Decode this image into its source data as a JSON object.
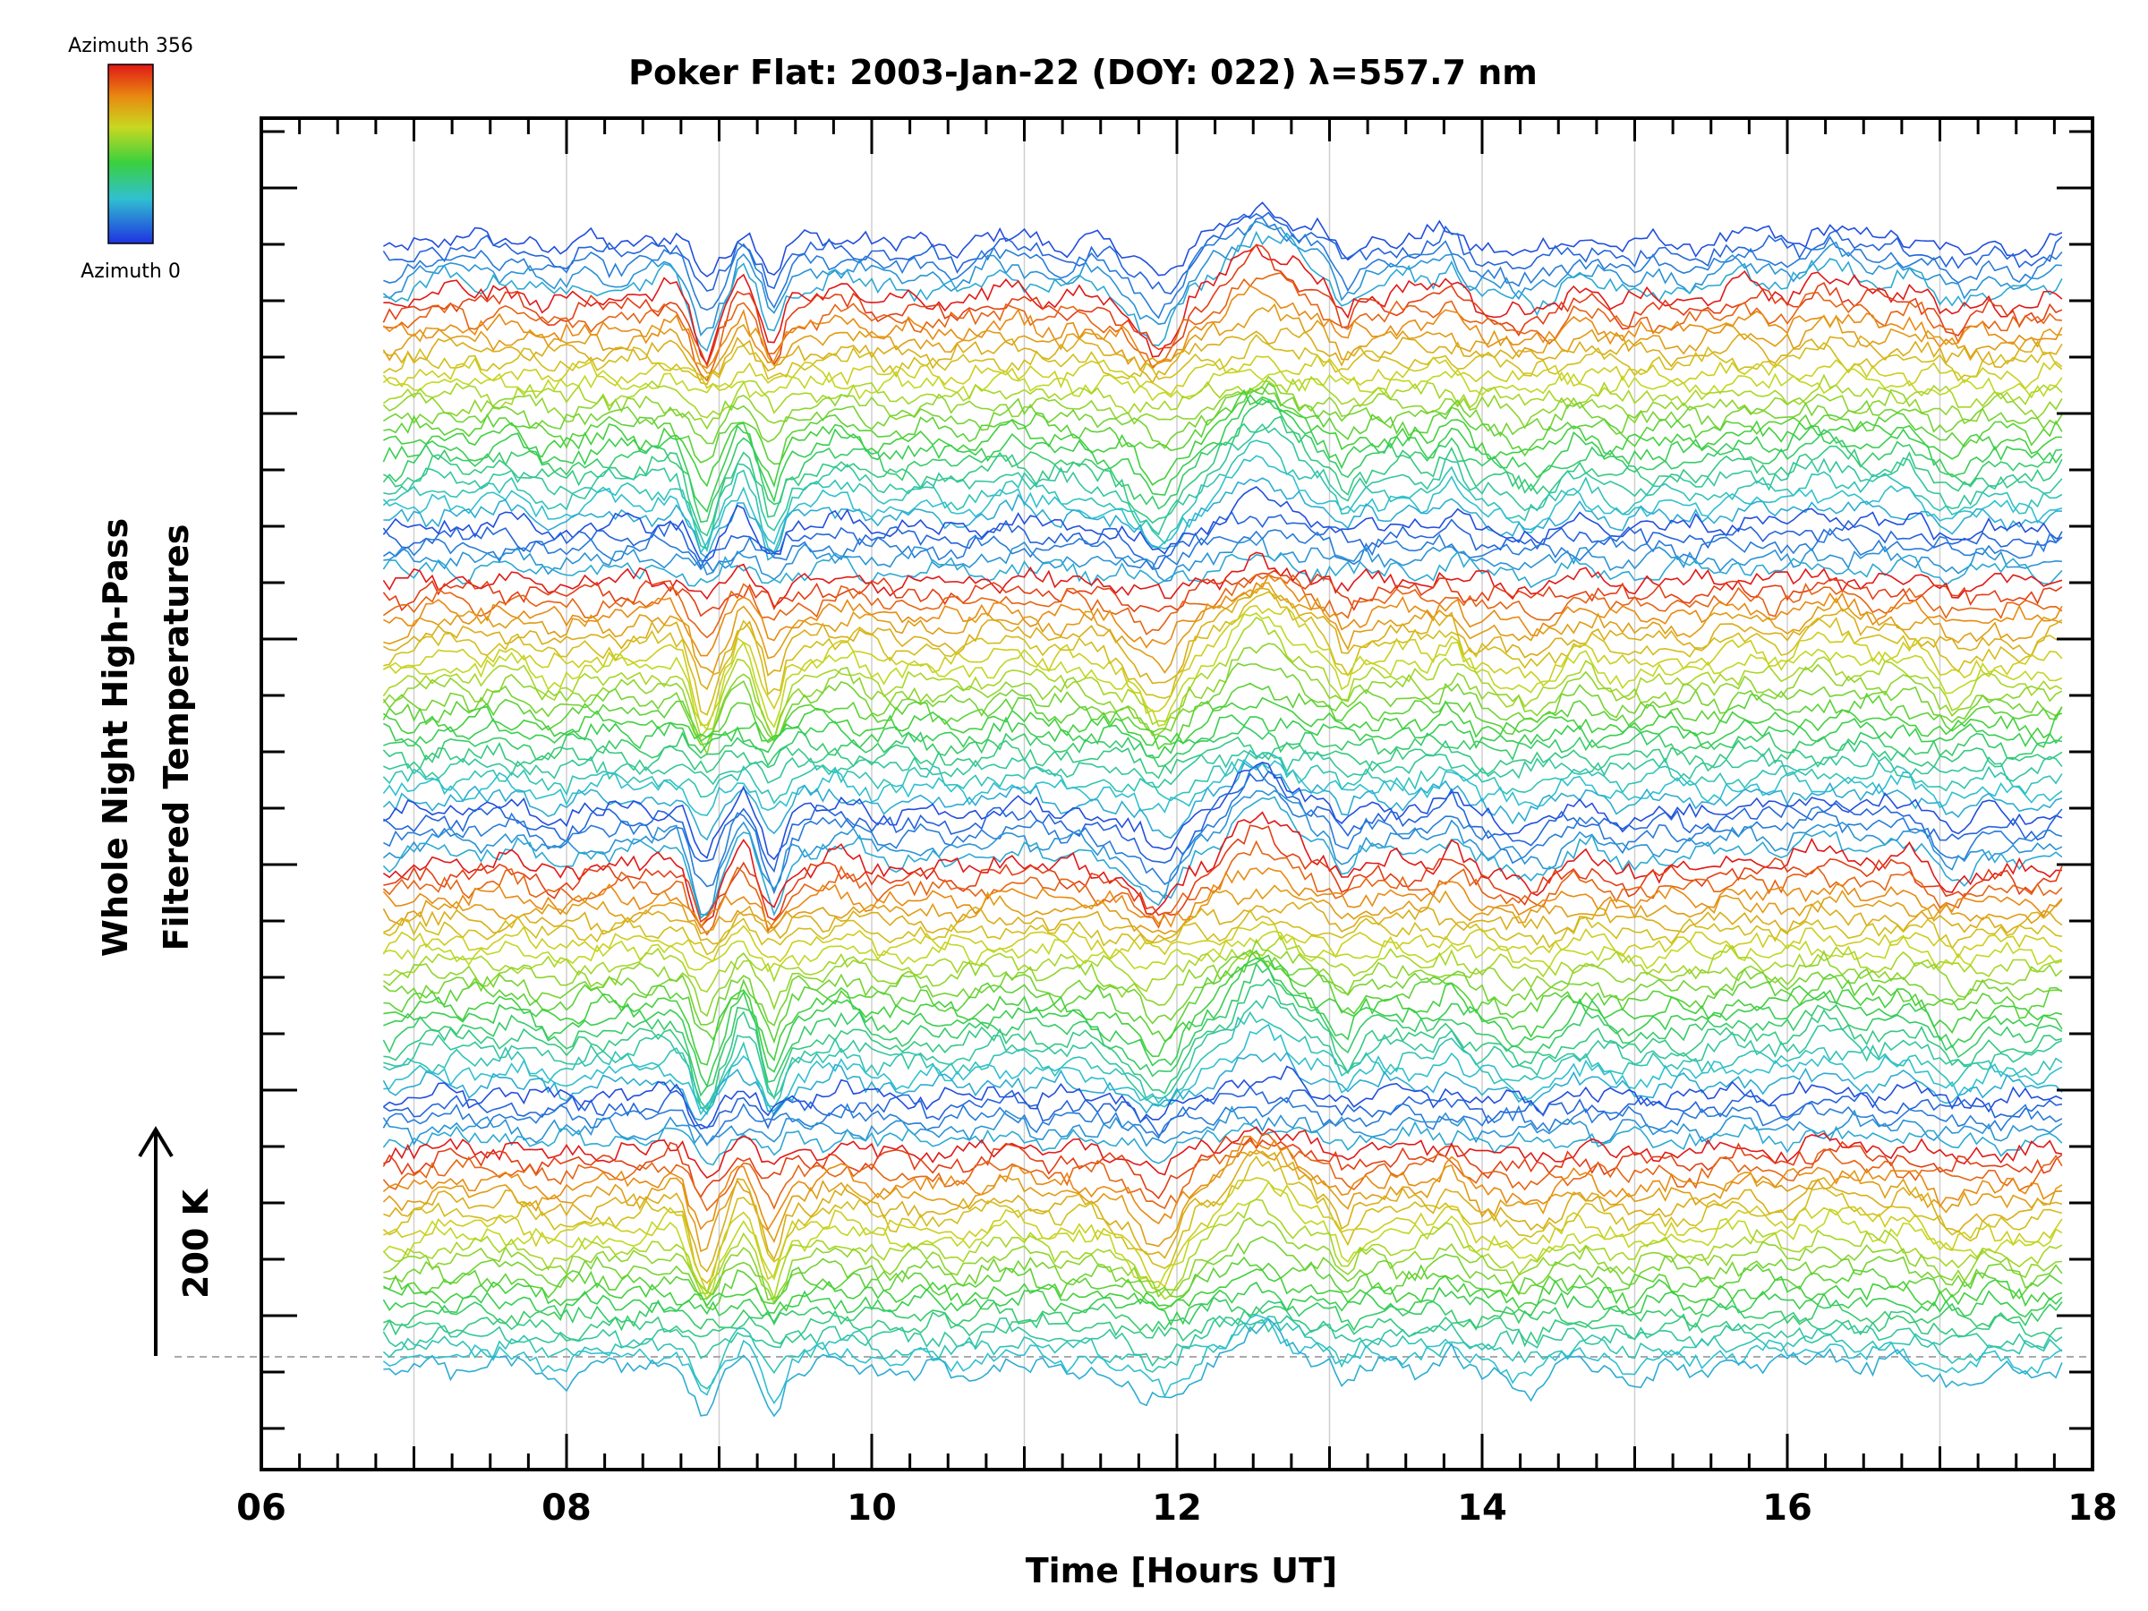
{
  "chart_data": {
    "type": "line",
    "title": "Poker Flat: 2003-Jan-22 (DOY: 022) λ=557.7 nm",
    "xlabel": "Time [Hours UT]",
    "ylabel_line1": "Whole Night High-Pass",
    "ylabel_line2": "Filtered Temperatures",
    "scale_label": "200 K",
    "scale_k": 200,
    "xlim": [
      6,
      18
    ],
    "x_ticks": [
      "06",
      "08",
      "10",
      "12",
      "14",
      "16",
      "18"
    ],
    "x_tick_values": [
      6,
      8,
      10,
      12,
      14,
      16,
      18
    ],
    "x_start": 6.8,
    "x_end": 17.8,
    "colorbar": {
      "top_label": "Azimuth 356",
      "bottom_label": "Azimuth 0",
      "min": 0,
      "max": 356
    },
    "colors": {
      "blue": "#1f32e0",
      "cyan": "#30c0d0",
      "green": "#3ad040",
      "yellow": "#c8d820",
      "orange": "#e88a10",
      "red": "#e01818"
    },
    "groups": 4,
    "traces_per_group": 26,
    "common_features": [
      {
        "t": 8.9,
        "amp": -60,
        "w": 0.1
      },
      {
        "t": 9.35,
        "amp": -50,
        "w": 0.08
      },
      {
        "t": 9.15,
        "amp": 25,
        "w": 0.07
      },
      {
        "t": 11.9,
        "amp": -55,
        "w": 0.18
      },
      {
        "t": 12.6,
        "amp": 55,
        "w": 0.3
      },
      {
        "t": 13.1,
        "amp": -25,
        "w": 0.08
      },
      {
        "t": 13.8,
        "amp": 30,
        "w": 0.1
      },
      {
        "t": 14.3,
        "amp": -20,
        "w": 0.25
      },
      {
        "t": 16.3,
        "amp": 22,
        "w": 0.3
      },
      {
        "t": 17.1,
        "amp": -18,
        "w": 0.2
      }
    ]
  }
}
